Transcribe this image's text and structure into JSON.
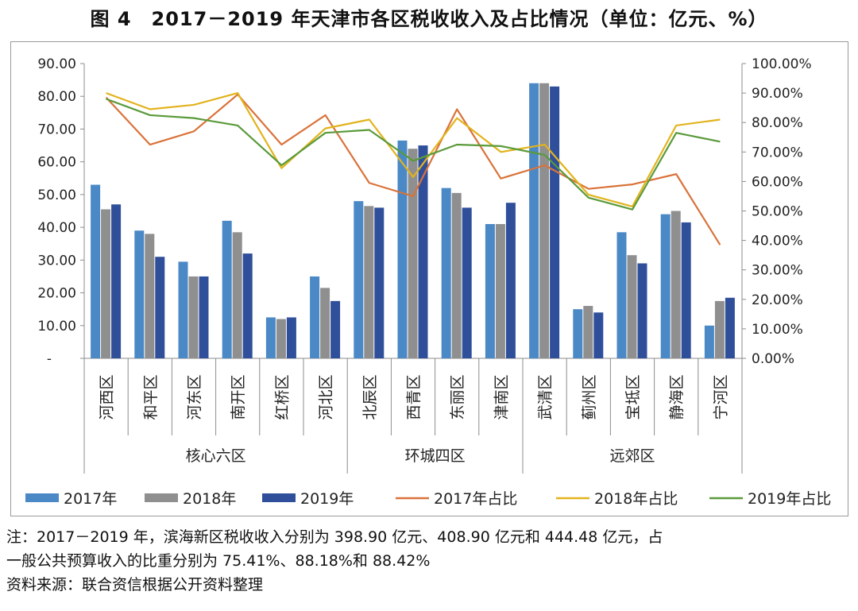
{
  "title": "图 4　2017－2019 年天津市各区税收收入及占比情况（单位：亿元、%）",
  "notes": {
    "line1": "注：2017－2019 年，滨海新区税收收入分别为 398.90 亿元、408.90 亿元和 444.48 亿元，占",
    "line2": "一般公共预算收入的比重分别为 75.41%、88.18%和 88.42%",
    "source": "资料来源：联合资信根据公开资料整理"
  },
  "chart_data": {
    "type": "bar",
    "categories": [
      "河西区",
      "和平区",
      "河东区",
      "南开区",
      "红桥区",
      "河北区",
      "北辰区",
      "西青区",
      "东丽区",
      "津南区",
      "武清区",
      "蓟州区",
      "宝坻区",
      "静海区",
      "宁河区"
    ],
    "groups": [
      {
        "label": "核心六区",
        "count": 6
      },
      {
        "label": "环城四区",
        "count": 4
      },
      {
        "label": "远郊区",
        "count": 5
      }
    ],
    "y_left": {
      "min": 0,
      "max": 90,
      "ticks": [
        "-",
        "10.00",
        "20.00",
        "30.00",
        "40.00",
        "50.00",
        "60.00",
        "70.00",
        "80.00",
        "90.00"
      ]
    },
    "y_right": {
      "min": 0,
      "max": 100,
      "ticks": [
        "0.00%",
        "10.00%",
        "20.00%",
        "30.00%",
        "40.00%",
        "50.00%",
        "60.00%",
        "70.00%",
        "80.00%",
        "90.00%",
        "100.00%"
      ]
    },
    "bar_series": [
      {
        "name": "2017年",
        "color": "#4a88c6",
        "values": [
          53.0,
          39.0,
          29.5,
          42.0,
          12.5,
          25.0,
          48.0,
          66.5,
          52.0,
          41.0,
          84.0,
          15.0,
          38.5,
          44.0,
          10.0
        ]
      },
      {
        "name": "2018年",
        "color": "#8f8f8f",
        "values": [
          45.5,
          38.0,
          25.0,
          38.5,
          12.0,
          21.5,
          46.5,
          64.0,
          50.5,
          41.0,
          84.0,
          16.0,
          31.5,
          45.0,
          17.5
        ]
      },
      {
        "name": "2019年",
        "color": "#2f4f9a",
        "values": [
          47.0,
          31.0,
          25.0,
          32.0,
          12.5,
          17.5,
          46.0,
          65.0,
          46.0,
          47.5,
          83.0,
          14.0,
          29.0,
          41.5,
          18.5
        ]
      }
    ],
    "line_series": [
      {
        "name": "2017年占比",
        "color": "#d9733a",
        "values": [
          88.5,
          72.5,
          77.0,
          89.5,
          72.5,
          82.5,
          59.5,
          55.0,
          84.5,
          61.0,
          65.5,
          57.5,
          59.0,
          62.5,
          38.5
        ]
      },
      {
        "name": "2018年占比",
        "color": "#e2b31d",
        "values": [
          90.0,
          84.5,
          86.0,
          90.0,
          64.5,
          78.0,
          81.0,
          61.5,
          81.5,
          70.0,
          72.5,
          55.5,
          51.5,
          79.0,
          81.0
        ]
      },
      {
        "name": "2019年占比",
        "color": "#5a9a3a",
        "values": [
          88.0,
          82.5,
          81.5,
          79.0,
          65.5,
          76.5,
          77.5,
          67.0,
          72.5,
          72.0,
          69.0,
          54.5,
          50.5,
          76.5,
          73.5
        ]
      }
    ]
  }
}
